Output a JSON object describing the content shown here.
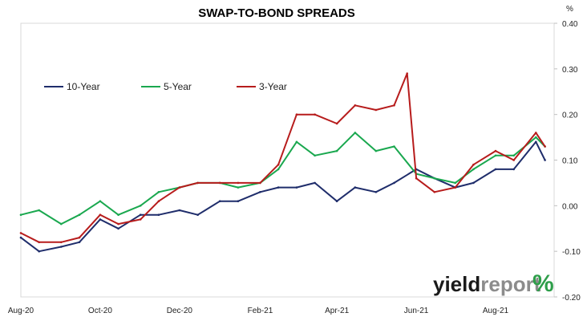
{
  "chart_data": {
    "type": "line",
    "title": "SWAP-TO-BOND SPREADS",
    "y_unit": "%",
    "ylim": [
      -0.2,
      0.4
    ],
    "y_ticks": [
      "0.40",
      "0.30",
      "0.20",
      "0.10",
      "0.00",
      "-0.10",
      "-0.20"
    ],
    "y_tick_values": [
      0.4,
      0.3,
      0.2,
      0.1,
      0.0,
      -0.1,
      -0.2
    ],
    "x_tick_labels": [
      "Aug-20",
      "Oct-20",
      "Dec-20",
      "Feb-21",
      "Apr-21",
      "Jun-21",
      "Aug-21"
    ],
    "x_tick_dates": [
      "2020-08-01",
      "2020-10-01",
      "2020-12-01",
      "2021-02-01",
      "2021-04-01",
      "2021-06-01",
      "2021-08-01"
    ],
    "xlim": [
      "2020-08-01",
      "2021-09-15"
    ],
    "grid": false,
    "legend_position": "top-left",
    "series": [
      {
        "name": "10-Year",
        "color": "#1f2d6b",
        "x": [
          "2020-08-01",
          "2020-08-15",
          "2020-09-01",
          "2020-09-15",
          "2020-10-01",
          "2020-10-15",
          "2020-11-01",
          "2020-11-15",
          "2020-12-01",
          "2020-12-15",
          "2021-01-01",
          "2021-01-15",
          "2021-02-01",
          "2021-02-15",
          "2021-03-01",
          "2021-03-15",
          "2021-04-01",
          "2021-04-15",
          "2021-05-01",
          "2021-05-15",
          "2021-06-01",
          "2021-06-15",
          "2021-07-01",
          "2021-07-15",
          "2021-08-01",
          "2021-08-15",
          "2021-09-01",
          "2021-09-08"
        ],
        "values": [
          -0.07,
          -0.1,
          -0.09,
          -0.08,
          -0.03,
          -0.05,
          -0.02,
          -0.02,
          -0.01,
          -0.02,
          0.01,
          0.01,
          0.03,
          0.04,
          0.04,
          0.05,
          0.01,
          0.04,
          0.03,
          0.05,
          0.08,
          0.06,
          0.04,
          0.05,
          0.08,
          0.08,
          0.14,
          0.1
        ]
      },
      {
        "name": "5-Year",
        "color": "#1aa84f",
        "x": [
          "2020-08-01",
          "2020-08-15",
          "2020-09-01",
          "2020-09-15",
          "2020-10-01",
          "2020-10-15",
          "2020-11-01",
          "2020-11-15",
          "2020-12-01",
          "2020-12-15",
          "2021-01-01",
          "2021-01-15",
          "2021-02-01",
          "2021-02-15",
          "2021-03-01",
          "2021-03-15",
          "2021-04-01",
          "2021-04-15",
          "2021-05-01",
          "2021-05-15",
          "2021-06-01",
          "2021-06-15",
          "2021-07-01",
          "2021-07-15",
          "2021-08-01",
          "2021-08-15",
          "2021-09-01",
          "2021-09-08"
        ],
        "values": [
          -0.02,
          -0.01,
          -0.04,
          -0.02,
          0.01,
          -0.02,
          0.0,
          0.03,
          0.04,
          0.05,
          0.05,
          0.04,
          0.05,
          0.08,
          0.14,
          0.11,
          0.12,
          0.16,
          0.12,
          0.13,
          0.07,
          0.06,
          0.05,
          0.08,
          0.11,
          0.11,
          0.15,
          0.13
        ]
      },
      {
        "name": "3-Year",
        "color": "#b71c1c",
        "x": [
          "2020-08-01",
          "2020-08-15",
          "2020-09-01",
          "2020-09-15",
          "2020-10-01",
          "2020-10-15",
          "2020-11-01",
          "2020-11-15",
          "2020-12-01",
          "2020-12-15",
          "2021-01-01",
          "2021-01-15",
          "2021-02-01",
          "2021-02-15",
          "2021-03-01",
          "2021-03-15",
          "2021-04-01",
          "2021-04-15",
          "2021-05-01",
          "2021-05-15",
          "2021-05-25",
          "2021-06-01",
          "2021-06-15",
          "2021-07-01",
          "2021-07-15",
          "2021-08-01",
          "2021-08-15",
          "2021-09-01",
          "2021-09-08"
        ],
        "values": [
          -0.06,
          -0.08,
          -0.08,
          -0.07,
          -0.02,
          -0.04,
          -0.03,
          0.01,
          0.04,
          0.05,
          0.05,
          0.05,
          0.05,
          0.09,
          0.2,
          0.2,
          0.18,
          0.22,
          0.21,
          0.22,
          0.29,
          0.06,
          0.03,
          0.04,
          0.09,
          0.12,
          0.1,
          0.16,
          0.13
        ]
      }
    ]
  },
  "branding": {
    "part1": "yield",
    "part2": "report",
    "part3": "%",
    "color_dark": "#1a1a1a",
    "color_light": "#8c8c8c",
    "color_pct_green": "#2e9e4a",
    "color_pct_red": "#c62828"
  }
}
